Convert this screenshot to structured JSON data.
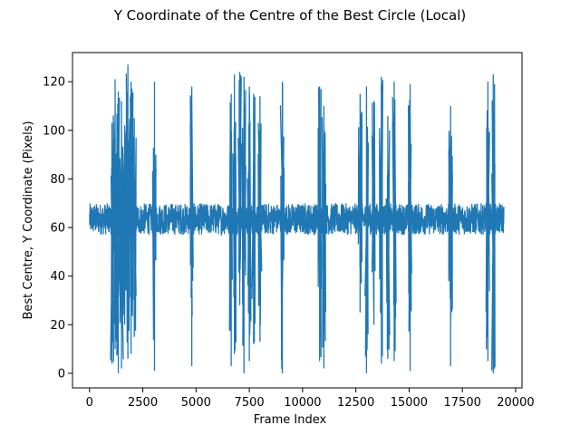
{
  "chart_data": {
    "type": "line",
    "title": "Y Coordinate of the Centre of the Best Circle (Local)",
    "xlabel": "Frame Index",
    "ylabel": "Best Centre, Y Coordinate (Pixels)",
    "xlim": [
      -800,
      20300
    ],
    "ylim": [
      -6,
      132
    ],
    "xticks": [
      0,
      2500,
      5000,
      7500,
      10000,
      12500,
      15000,
      17500,
      20000
    ],
    "yticks": [
      0,
      20,
      40,
      60,
      80,
      100,
      120
    ],
    "grid": false,
    "color": "#1f77b4",
    "series": [
      {
        "baseline": {
          "x_range": [
            0,
            19450
          ],
          "y_range": [
            57,
            70
          ]
        },
        "excursions": [
          {
            "x": 1050,
            "y_min": 4,
            "y_max": 103
          },
          {
            "x": 1200,
            "y_min": 10,
            "y_max": 121
          },
          {
            "x": 1350,
            "y_min": 0,
            "y_max": 116
          },
          {
            "x": 1500,
            "y_min": 2,
            "y_max": 112
          },
          {
            "x": 1650,
            "y_min": 20,
            "y_max": 102
          },
          {
            "x": 1800,
            "y_min": 6,
            "y_max": 127
          },
          {
            "x": 1950,
            "y_min": 8,
            "y_max": 120
          },
          {
            "x": 2100,
            "y_min": 15,
            "y_max": 105
          },
          {
            "x": 3050,
            "y_min": 1,
            "y_max": 120
          },
          {
            "x": 4800,
            "y_min": 3,
            "y_max": 118
          },
          {
            "x": 6650,
            "y_min": 3,
            "y_max": 115
          },
          {
            "x": 6800,
            "y_min": 8,
            "y_max": 123
          },
          {
            "x": 7050,
            "y_min": 28,
            "y_max": 124
          },
          {
            "x": 7250,
            "y_min": 0,
            "y_max": 122
          },
          {
            "x": 7500,
            "y_min": 5,
            "y_max": 118
          },
          {
            "x": 7700,
            "y_min": 12,
            "y_max": 115
          },
          {
            "x": 8000,
            "y_min": 13,
            "y_max": 114
          },
          {
            "x": 9050,
            "y_min": 0,
            "y_max": 120
          },
          {
            "x": 10800,
            "y_min": 5,
            "y_max": 118
          },
          {
            "x": 11000,
            "y_min": 2,
            "y_max": 110
          },
          {
            "x": 12700,
            "y_min": 25,
            "y_max": 115
          },
          {
            "x": 13000,
            "y_min": 0,
            "y_max": 118
          },
          {
            "x": 13350,
            "y_min": 20,
            "y_max": 112
          },
          {
            "x": 13700,
            "y_min": 4,
            "y_max": 122
          },
          {
            "x": 14000,
            "y_min": 6,
            "y_max": 106
          },
          {
            "x": 14300,
            "y_min": 5,
            "y_max": 120
          },
          {
            "x": 15050,
            "y_min": 1,
            "y_max": 119
          },
          {
            "x": 16950,
            "y_min": 3,
            "y_max": 110
          },
          {
            "x": 18700,
            "y_min": 5,
            "y_max": 120
          },
          {
            "x": 18950,
            "y_min": 0,
            "y_max": 123
          }
        ]
      }
    ]
  }
}
